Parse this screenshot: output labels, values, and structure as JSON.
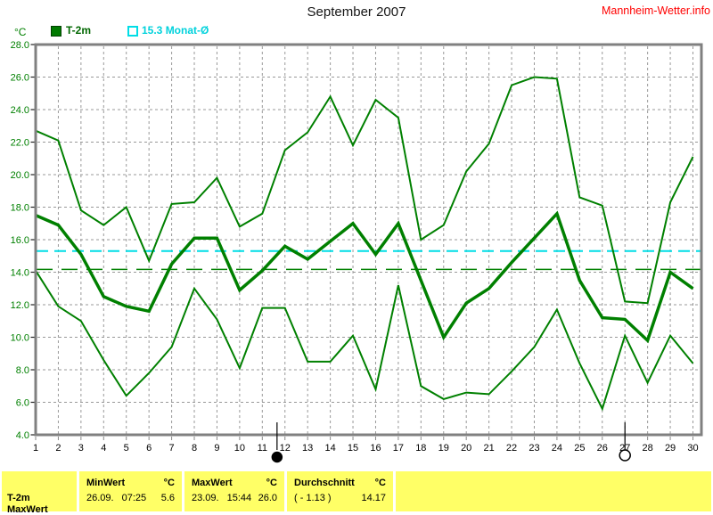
{
  "header": {
    "title": "September 2007",
    "brand": "Mannheim-Wetter.info"
  },
  "legend": {
    "unit_label": "°C",
    "series1_label": "T-2m",
    "series2_label": "15.3 Monat-Ø"
  },
  "chart_data": {
    "type": "line",
    "title": "September 2007",
    "ylabel": "°C",
    "xlabel": "",
    "ylim": [
      4,
      28
    ],
    "ytick_step": 2,
    "x": [
      1,
      2,
      3,
      4,
      5,
      6,
      7,
      8,
      9,
      10,
      11,
      12,
      13,
      14,
      15,
      16,
      17,
      18,
      19,
      20,
      21,
      22,
      23,
      24,
      25,
      26,
      27,
      28,
      29,
      30
    ],
    "series": [
      {
        "name": "T-2m daily max",
        "color": "#008000",
        "values": [
          22.7,
          22.1,
          17.8,
          16.9,
          18.0,
          14.7,
          18.2,
          18.3,
          19.8,
          16.8,
          17.6,
          21.5,
          22.6,
          24.8,
          21.8,
          24.6,
          23.5,
          16.0,
          16.9,
          20.2,
          21.9,
          25.5,
          26.0,
          25.9,
          18.6,
          18.1,
          12.2,
          12.1,
          18.3,
          21.1
        ]
      },
      {
        "name": "T-2m daily mean",
        "color": "#008000",
        "values": [
          17.5,
          16.9,
          15.1,
          12.5,
          11.9,
          11.6,
          14.5,
          16.1,
          16.1,
          12.9,
          14.1,
          15.6,
          14.8,
          15.9,
          17.0,
          15.1,
          17.0,
          13.5,
          10.0,
          12.1,
          13.0,
          14.6,
          16.1,
          17.6,
          13.5,
          11.2,
          11.1,
          9.8,
          14.0,
          13.0
        ]
      },
      {
        "name": "T-2m daily min",
        "color": "#008000",
        "values": [
          14.1,
          11.9,
          11.0,
          8.6,
          6.4,
          7.8,
          9.4,
          13.0,
          11.1,
          8.1,
          11.8,
          11.8,
          8.5,
          8.5,
          10.1,
          6.8,
          13.2,
          7.0,
          6.2,
          6.6,
          6.5,
          7.9,
          9.4,
          11.7,
          8.4,
          5.6,
          10.1,
          7.2,
          10.1,
          8.4
        ]
      }
    ],
    "reference_lines": [
      {
        "name": "Monat-Ø",
        "value": 15.3,
        "color": "#00dde6"
      },
      {
        "name": "Durchschnitt",
        "value": 14.17,
        "color": "#008000"
      }
    ],
    "moon_markers": [
      {
        "day": 11.65,
        "phase": "new"
      },
      {
        "day": 27.0,
        "phase": "full"
      }
    ],
    "grid": true,
    "legend_position": "top-left",
    "axis_label_colors": {
      "y": "#008000",
      "x": "#000000"
    }
  },
  "footer_table": {
    "row_label": "T-2m",
    "min": {
      "header": "MinWert",
      "unit": "°C",
      "date": "26.09.",
      "time": "07:25",
      "value": "5.6"
    },
    "max": {
      "header": "MaxWert",
      "unit": "°C",
      "date": "23.09.",
      "time": "15:44",
      "value": "26.0"
    },
    "avg": {
      "header": "Durchschnitt",
      "unit": "°C",
      "offset": "( - 1.13 )",
      "value": "14.17"
    },
    "clipped_row_label": "MaxWert"
  }
}
